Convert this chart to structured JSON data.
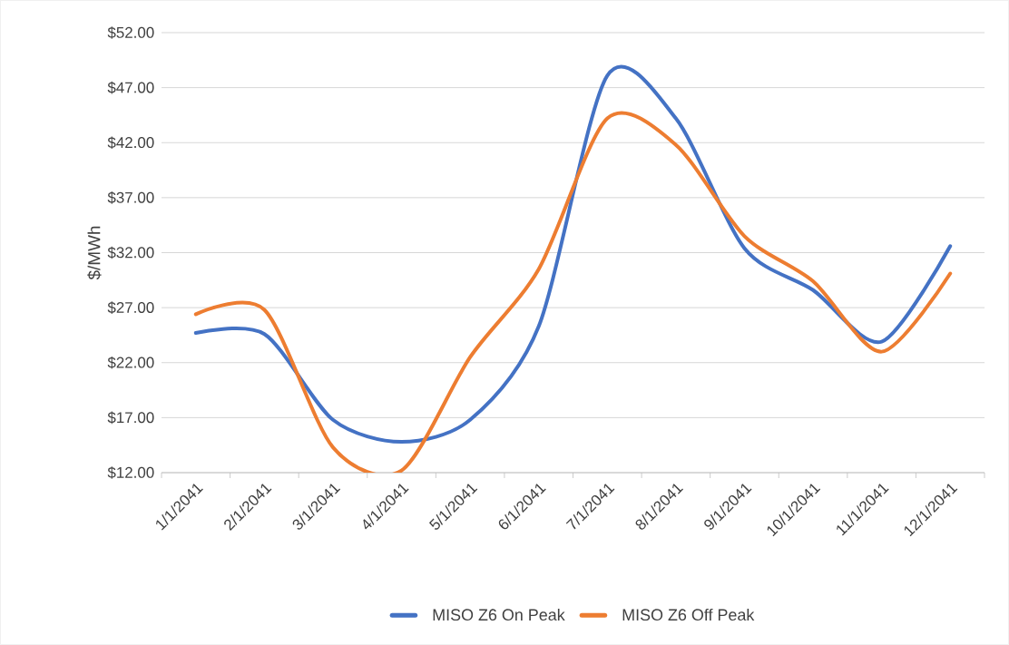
{
  "chart_data": {
    "type": "line",
    "ylabel": "$/MWh",
    "categories": [
      "1/1/2041",
      "2/1/2041",
      "3/1/2041",
      "4/1/2041",
      "5/1/2041",
      "6/1/2041",
      "7/1/2041",
      "8/1/2041",
      "9/1/2041",
      "10/1/2041",
      "11/1/2041",
      "12/1/2041"
    ],
    "series": [
      {
        "name": "MISO Z6 On Peak",
        "color": "#4472c4",
        "values": [
          24.7,
          24.6,
          16.8,
          14.8,
          16.8,
          25.3,
          48.1,
          44.2,
          32.4,
          28.6,
          23.9,
          32.6
        ]
      },
      {
        "name": "MISO Z6 Off Peak",
        "color": "#ed7d31",
        "values": [
          26.4,
          26.8,
          14.3,
          12.2,
          22.5,
          30.5,
          44.2,
          41.8,
          33.5,
          29.4,
          23.0,
          30.1
        ]
      }
    ],
    "ylim": [
      12,
      52
    ],
    "yticks": [
      {
        "value": 12,
        "label": "$12.00"
      },
      {
        "value": 17,
        "label": "$17.00"
      },
      {
        "value": 22,
        "label": "$22.00"
      },
      {
        "value": 27,
        "label": "$27.00"
      },
      {
        "value": 32,
        "label": "$32.00"
      },
      {
        "value": 37,
        "label": "$37.00"
      },
      {
        "value": 42,
        "label": "$42.00"
      },
      {
        "value": 47,
        "label": "$47.00"
      },
      {
        "value": 52,
        "label": "$52.00"
      }
    ],
    "grid": "y",
    "legend": "bottom",
    "line_style": "solid",
    "marker": "none"
  }
}
